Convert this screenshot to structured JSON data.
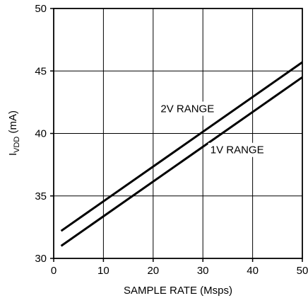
{
  "chart_data": {
    "type": "line",
    "xlabel": "SAMPLE RATE (Msps)",
    "ylabel": {
      "main": "I",
      "subscript": "VDD",
      "unit": " (mA)"
    },
    "xlim": [
      0,
      50
    ],
    "ylim": [
      30,
      50
    ],
    "xticks": [
      0,
      10,
      20,
      30,
      40,
      50
    ],
    "yticks": [
      30,
      35,
      40,
      45,
      50
    ],
    "grid": true,
    "series": [
      {
        "name": "2V RANGE",
        "x": [
          1.5,
          50
        ],
        "y": [
          32.2,
          45.7
        ]
      },
      {
        "name": "1V RANGE",
        "x": [
          1.5,
          50
        ],
        "y": [
          31.0,
          44.5
        ]
      }
    ],
    "annotations": [
      {
        "text": "2V RANGE",
        "x": 21.5,
        "y": 41.7
      },
      {
        "text": "1V RANGE",
        "x": 31.5,
        "y": 38.4
      }
    ],
    "colors": {
      "line": "#000000",
      "grid": "#000000"
    }
  }
}
